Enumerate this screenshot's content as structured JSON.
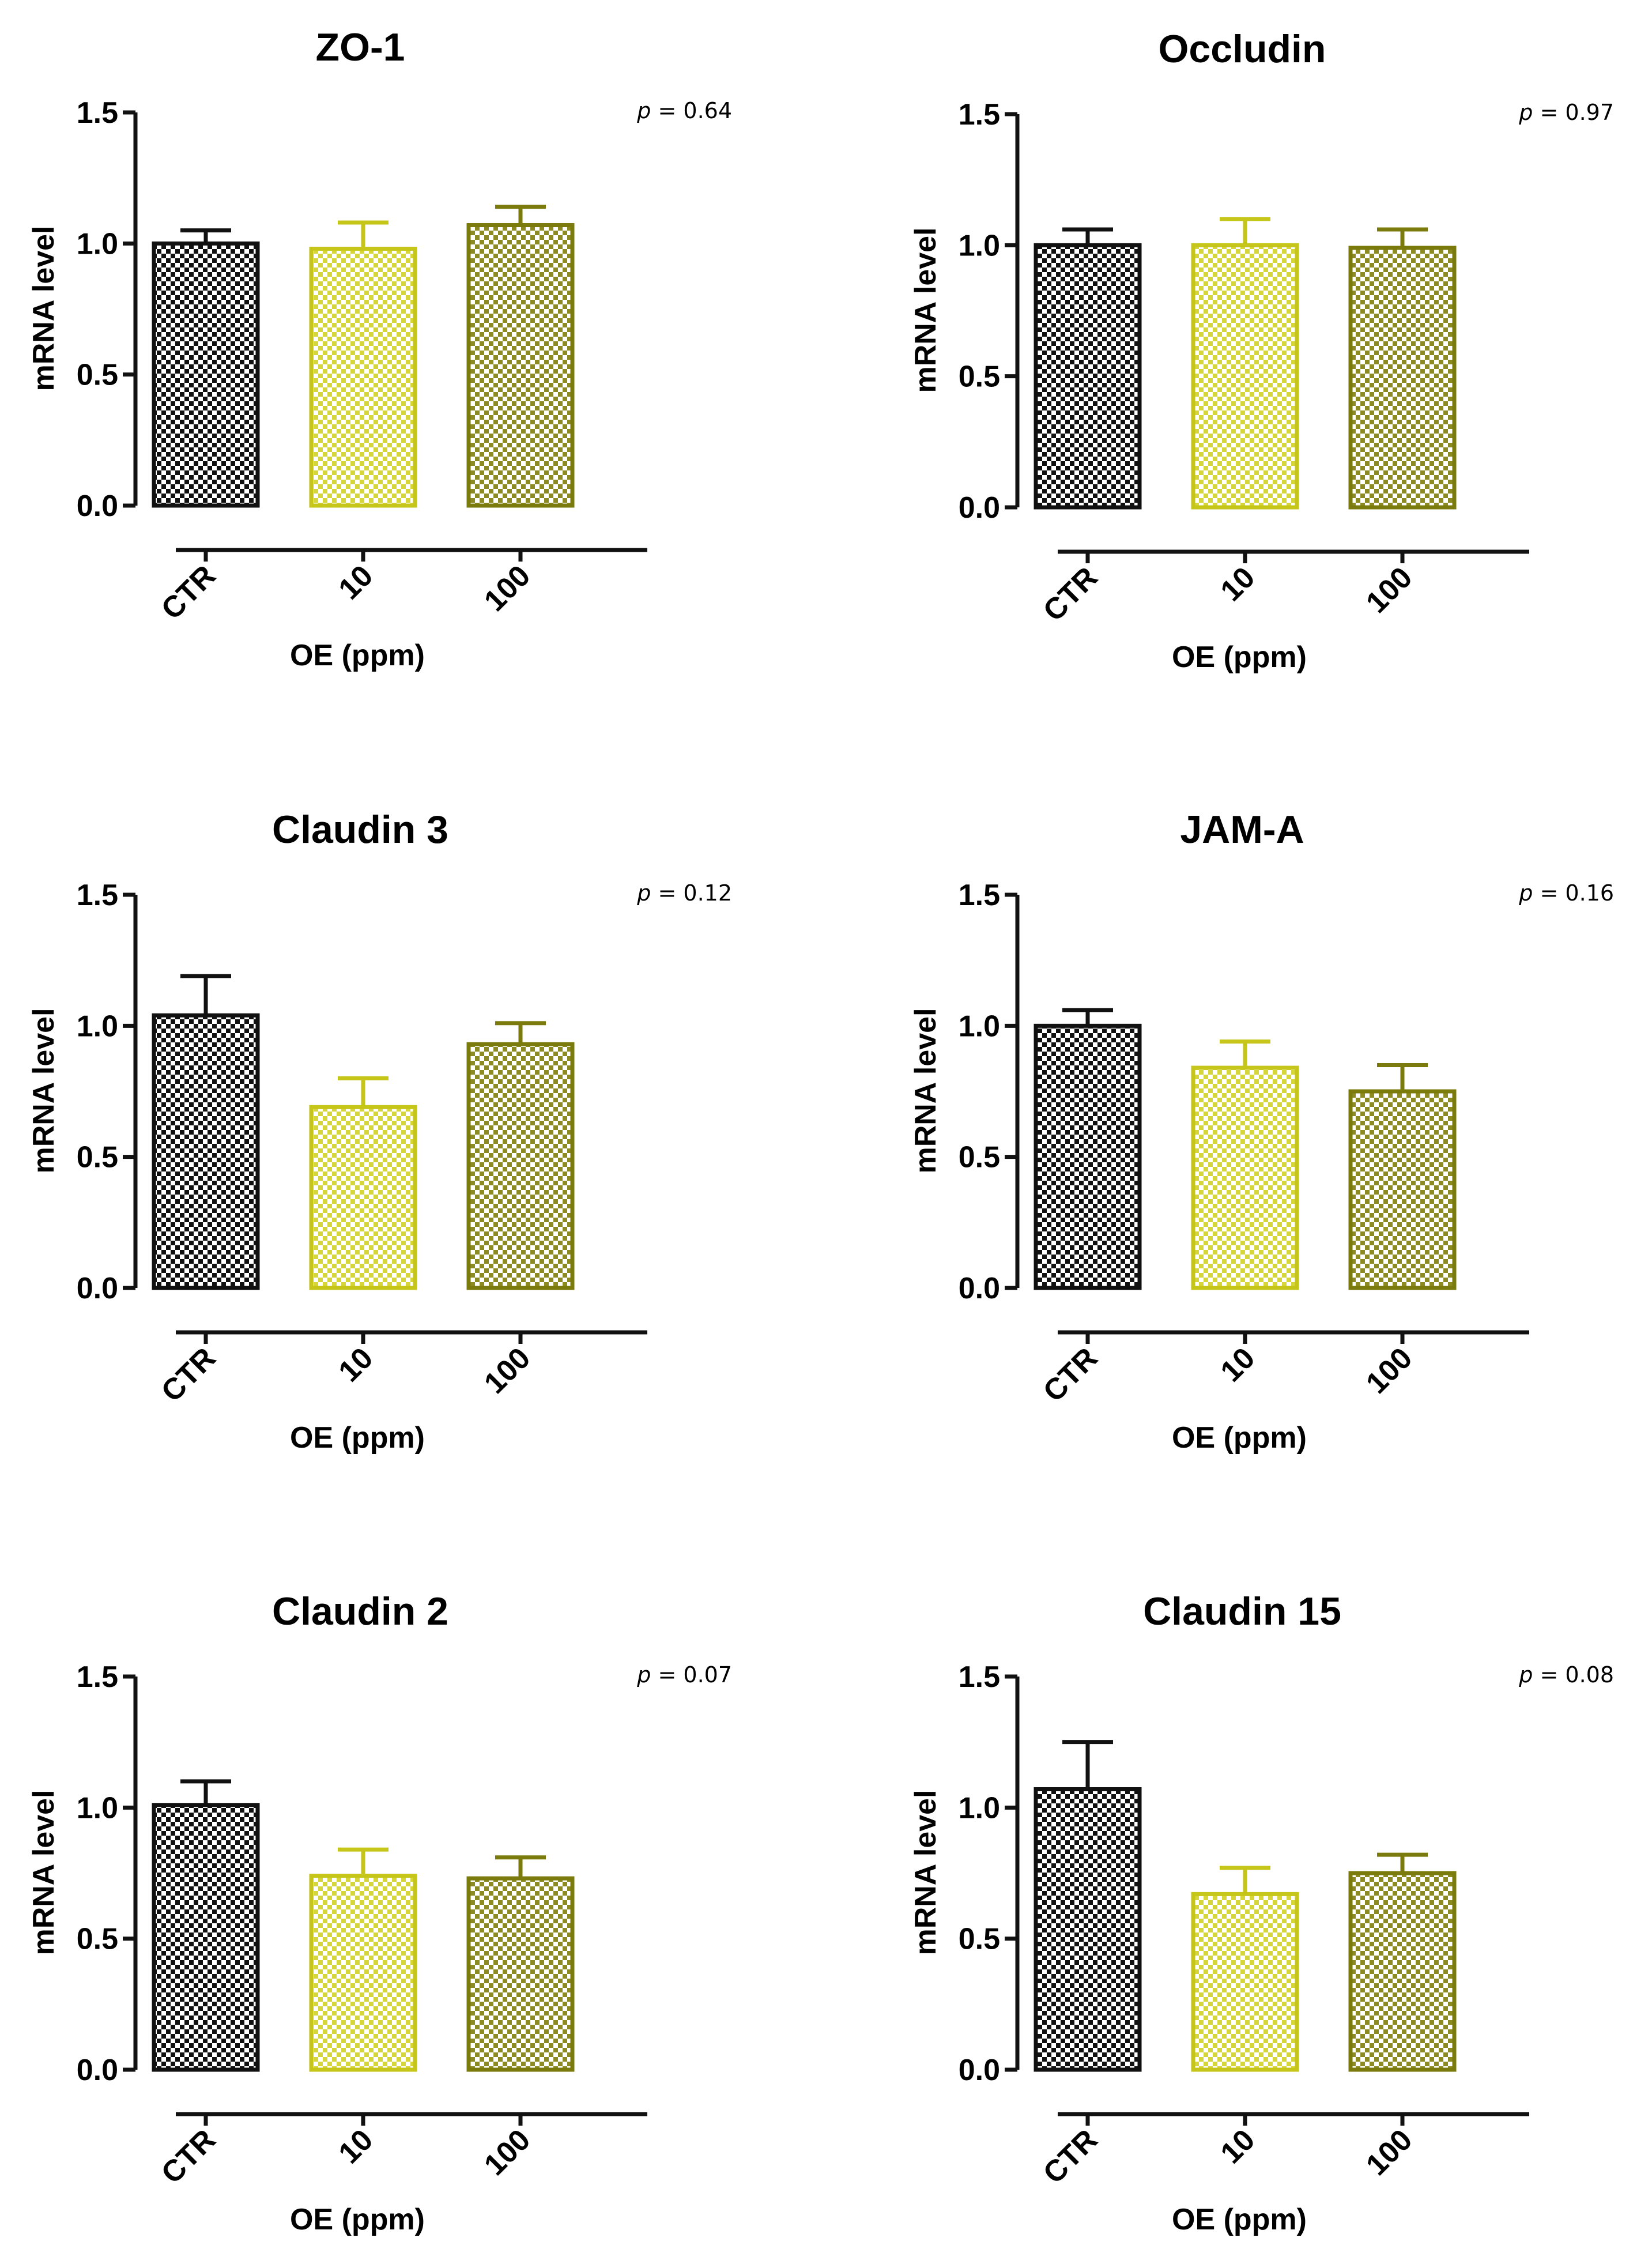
{
  "figure": {
    "y_axis_label": "mRNA level",
    "x_axis_label": "OE (ppm)",
    "p_symbol": "p",
    "series_colors": [
      "#111111",
      "#c6c61a",
      "#7b7b0d"
    ]
  },
  "chart_data": [
    {
      "type": "bar",
      "title": "ZO-1",
      "p_text": " = 0.64",
      "categories": [
        "CTR",
        "10",
        "100"
      ],
      "values": [
        1.0,
        0.98,
        1.07
      ],
      "errors": [
        0.05,
        0.1,
        0.07
      ],
      "ylim": [
        0,
        1.5
      ],
      "yticks": [
        "0.0",
        "0.5",
        "1.0",
        "1.5"
      ],
      "xlabel": "OE (ppm)",
      "ylabel": "mRNA level"
    },
    {
      "type": "bar",
      "title": "Occludin",
      "p_text": " = 0.97",
      "categories": [
        "CTR",
        "10",
        "100"
      ],
      "values": [
        1.0,
        1.0,
        0.99
      ],
      "errors": [
        0.06,
        0.1,
        0.07
      ],
      "ylim": [
        0,
        1.5
      ],
      "yticks": [
        "0.0",
        "0.5",
        "1.0",
        "1.5"
      ],
      "xlabel": "OE (ppm)",
      "ylabel": "mRNA level"
    },
    {
      "type": "bar",
      "title": "Claudin 3",
      "p_text": " = 0.12",
      "categories": [
        "CTR",
        "10",
        "100"
      ],
      "values": [
        1.04,
        0.69,
        0.93
      ],
      "errors": [
        0.15,
        0.11,
        0.08
      ],
      "ylim": [
        0,
        1.5
      ],
      "yticks": [
        "0.0",
        "0.5",
        "1.0",
        "1.5"
      ],
      "xlabel": "OE (ppm)",
      "ylabel": "mRNA level"
    },
    {
      "type": "bar",
      "title": "JAM-A",
      "p_text": " = 0.16",
      "categories": [
        "CTR",
        "10",
        "100"
      ],
      "values": [
        1.0,
        0.84,
        0.75
      ],
      "errors": [
        0.06,
        0.1,
        0.1
      ],
      "ylim": [
        0,
        1.5
      ],
      "yticks": [
        "0.0",
        "0.5",
        "1.0",
        "1.5"
      ],
      "xlabel": "OE (ppm)",
      "ylabel": "mRNA level"
    },
    {
      "type": "bar",
      "title": "Claudin 2",
      "p_text": " = 0.07",
      "categories": [
        "CTR",
        "10",
        "100"
      ],
      "values": [
        1.01,
        0.74,
        0.73
      ],
      "errors": [
        0.09,
        0.1,
        0.08
      ],
      "ylim": [
        0,
        1.5
      ],
      "yticks": [
        "0.0",
        "0.5",
        "1.0",
        "1.5"
      ],
      "xlabel": "OE (ppm)",
      "ylabel": "mRNA level"
    },
    {
      "type": "bar",
      "title": "Claudin 15",
      "p_text": " = 0.08",
      "categories": [
        "CTR",
        "10",
        "100"
      ],
      "values": [
        1.07,
        0.67,
        0.75
      ],
      "errors": [
        0.18,
        0.1,
        0.07
      ],
      "ylim": [
        0,
        1.5
      ],
      "yticks": [
        "0.0",
        "0.5",
        "1.0",
        "1.5"
      ],
      "xlabel": "OE (ppm)",
      "ylabel": "mRNA level"
    }
  ]
}
